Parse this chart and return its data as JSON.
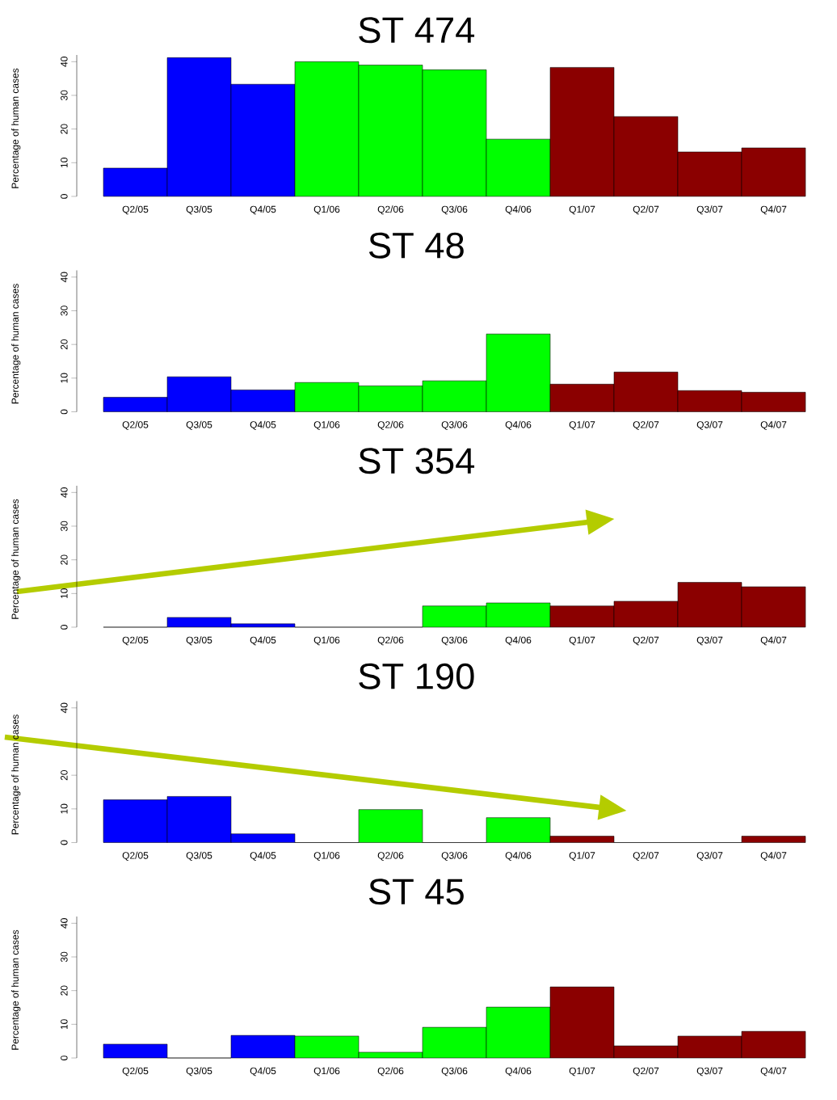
{
  "chart_data": [
    {
      "type": "bar",
      "title": "ST 474",
      "ylabel": "Percentage of human cases",
      "categories": [
        "Q2/05",
        "Q3/05",
        "Q4/05",
        "Q1/06",
        "Q2/06",
        "Q3/06",
        "Q4/06",
        "Q1/07",
        "Q2/07",
        "Q3/07",
        "Q4/07"
      ],
      "values": [
        8.4,
        41.2,
        33.3,
        40,
        39,
        37.6,
        17,
        38.3,
        23.7,
        13.2,
        14.4
      ],
      "colors": [
        "#0000ff",
        "#0000ff",
        "#0000ff",
        "#00ff00",
        "#00ff00",
        "#00ff00",
        "#00ff00",
        "#8b0000",
        "#8b0000",
        "#8b0000",
        "#8b0000"
      ],
      "ylim": [
        0,
        42
      ],
      "yticks": [
        0,
        10,
        20,
        30,
        40
      ]
    },
    {
      "type": "bar",
      "title": "ST 48",
      "ylabel": "Percentage of human cases",
      "categories": [
        "Q2/05",
        "Q3/05",
        "Q4/05",
        "Q1/06",
        "Q2/06",
        "Q3/06",
        "Q4/06",
        "Q1/07",
        "Q2/07",
        "Q3/07",
        "Q4/07"
      ],
      "values": [
        4.3,
        10.4,
        6.5,
        8.7,
        7.7,
        9.2,
        23.1,
        8.2,
        11.8,
        6.3,
        5.8
      ],
      "colors": [
        "#0000ff",
        "#0000ff",
        "#0000ff",
        "#00ff00",
        "#00ff00",
        "#00ff00",
        "#00ff00",
        "#8b0000",
        "#8b0000",
        "#8b0000",
        "#8b0000"
      ],
      "ylim": [
        0,
        42
      ],
      "yticks": [
        0,
        10,
        20,
        30,
        40
      ]
    },
    {
      "type": "bar",
      "title": "ST 354",
      "ylabel": "Percentage of human cases",
      "categories": [
        "Q2/05",
        "Q3/05",
        "Q4/05",
        "Q1/06",
        "Q2/06",
        "Q3/06",
        "Q4/06",
        "Q1/07",
        "Q2/07",
        "Q3/07",
        "Q4/07"
      ],
      "values": [
        0,
        2.9,
        1,
        0,
        0,
        6.3,
        7.2,
        6.3,
        7.7,
        13.3,
        12
      ],
      "colors": [
        "#0000ff",
        "#0000ff",
        "#0000ff",
        "#00ff00",
        "#00ff00",
        "#00ff00",
        "#00ff00",
        "#8b0000",
        "#8b0000",
        "#8b0000",
        "#8b0000"
      ],
      "ylim": [
        0,
        42
      ],
      "yticks": [
        0,
        10,
        20,
        30,
        40
      ]
    },
    {
      "type": "bar",
      "title": "ST 190",
      "ylabel": "Percentage of human cases",
      "categories": [
        "Q2/05",
        "Q3/05",
        "Q4/05",
        "Q1/06",
        "Q2/06",
        "Q3/06",
        "Q4/06",
        "Q1/07",
        "Q2/07",
        "Q3/07",
        "Q4/07"
      ],
      "values": [
        12.7,
        13.7,
        2.6,
        0,
        9.8,
        0,
        7.4,
        1.9,
        0,
        0,
        1.9
      ],
      "colors": [
        "#0000ff",
        "#0000ff",
        "#0000ff",
        "#00ff00",
        "#00ff00",
        "#00ff00",
        "#00ff00",
        "#8b0000",
        "#8b0000",
        "#8b0000",
        "#8b0000"
      ],
      "ylim": [
        0,
        42
      ],
      "yticks": [
        0,
        10,
        20,
        40
      ]
    },
    {
      "type": "bar",
      "title": "ST 45",
      "ylabel": "Percentage of human cases",
      "categories": [
        "Q2/05",
        "Q3/05",
        "Q4/05",
        "Q1/06",
        "Q2/06",
        "Q3/06",
        "Q4/06",
        "Q1/07",
        "Q2/07",
        "Q3/07",
        "Q4/07"
      ],
      "values": [
        4.1,
        0,
        6.7,
        6.5,
        1.7,
        9.1,
        15.1,
        21.1,
        3.6,
        6.5,
        7.9
      ],
      "colors": [
        "#0000ff",
        "#0000ff",
        "#0000ff",
        "#00ff00",
        "#00ff00",
        "#00ff00",
        "#00ff00",
        "#8b0000",
        "#8b0000",
        "#8b0000",
        "#8b0000"
      ],
      "ylim": [
        0,
        42
      ],
      "yticks": [
        0,
        10,
        20,
        30,
        40
      ]
    }
  ]
}
